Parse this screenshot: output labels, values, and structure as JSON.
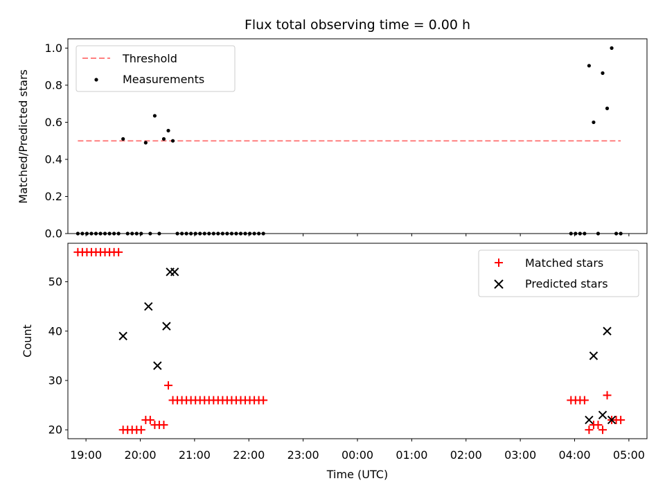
{
  "chart_data": [
    {
      "type": "scatter",
      "title": "Flux total observing time = 0.00 h",
      "xlabel": "",
      "ylabel": "Matched/Predicted stars",
      "xlim": [
        "18:40",
        "05:20"
      ],
      "ylim": [
        0,
        1.05
      ],
      "yticks": [
        0.0,
        0.2,
        0.4,
        0.6,
        0.8,
        1.0
      ],
      "ytick_labels": [
        "0.0",
        "0.2",
        "0.4",
        "0.6",
        "0.8",
        "1.0"
      ],
      "legend": "upper-left",
      "threshold": {
        "name": "Threshold",
        "value": 0.5,
        "from": "18:51",
        "to": "04:51",
        "color": "#ff7f7f",
        "style": "dashed"
      },
      "series": [
        {
          "name": "Measurements",
          "color": "#000000",
          "marker": "dot",
          "points": [
            [
              "18:51",
              0
            ],
            [
              "18:56",
              0
            ],
            [
              "19:01",
              0
            ],
            [
              "19:06",
              0
            ],
            [
              "19:11",
              0
            ],
            [
              "19:16",
              0
            ],
            [
              "19:21",
              0
            ],
            [
              "19:26",
              0
            ],
            [
              "19:31",
              0
            ],
            [
              "19:36",
              0
            ],
            [
              "19:41",
              0.51
            ],
            [
              "19:46",
              0
            ],
            [
              "19:51",
              0
            ],
            [
              "19:56",
              0
            ],
            [
              "20:01",
              0
            ],
            [
              "20:06",
              0.49
            ],
            [
              "20:11",
              0
            ],
            [
              "20:16",
              0.635
            ],
            [
              "20:21",
              0
            ],
            [
              "20:26",
              0.51
            ],
            [
              "20:31",
              0.555
            ],
            [
              "20:36",
              0.5
            ],
            [
              "20:41",
              0
            ],
            [
              "20:46",
              0
            ],
            [
              "20:51",
              0
            ],
            [
              "20:56",
              0
            ],
            [
              "21:01",
              0
            ],
            [
              "21:06",
              0
            ],
            [
              "21:11",
              0
            ],
            [
              "21:16",
              0
            ],
            [
              "21:21",
              0
            ],
            [
              "21:26",
              0
            ],
            [
              "21:31",
              0
            ],
            [
              "21:36",
              0
            ],
            [
              "21:41",
              0
            ],
            [
              "21:46",
              0
            ],
            [
              "21:51",
              0
            ],
            [
              "21:56",
              0
            ],
            [
              "22:01",
              0
            ],
            [
              "22:06",
              0
            ],
            [
              "22:11",
              0
            ],
            [
              "22:16",
              0
            ],
            [
              "03:56",
              0
            ],
            [
              "04:01",
              0
            ],
            [
              "04:06",
              0
            ],
            [
              "04:11",
              0
            ],
            [
              "04:16",
              0.905
            ],
            [
              "04:21",
              0.6
            ],
            [
              "04:26",
              0
            ],
            [
              "04:31",
              0.865
            ],
            [
              "04:36",
              0.675
            ],
            [
              "04:41",
              1.0
            ],
            [
              "04:46",
              0
            ],
            [
              "04:51",
              0
            ]
          ]
        }
      ]
    },
    {
      "type": "scatter",
      "title": "",
      "xlabel": "Time (UTC)",
      "ylabel": "Count",
      "xlim": [
        "18:40",
        "05:20"
      ],
      "ylim": [
        18.2,
        57.8
      ],
      "yticks": [
        20,
        30,
        40,
        50
      ],
      "ytick_labels": [
        "20",
        "30",
        "40",
        "50"
      ],
      "xticks": [
        "19:00",
        "20:00",
        "21:00",
        "22:00",
        "23:00",
        "00:00",
        "01:00",
        "02:00",
        "03:00",
        "04:00",
        "05:00"
      ],
      "legend": "upper-right",
      "series": [
        {
          "name": "Matched stars",
          "color": "#ff0000",
          "marker": "plus",
          "points": [
            [
              "18:51",
              56
            ],
            [
              "18:56",
              56
            ],
            [
              "19:01",
              56
            ],
            [
              "19:06",
              56
            ],
            [
              "19:11",
              56
            ],
            [
              "19:16",
              56
            ],
            [
              "19:21",
              56
            ],
            [
              "19:26",
              56
            ],
            [
              "19:31",
              56
            ],
            [
              "19:36",
              56
            ],
            [
              "19:41",
              20
            ],
            [
              "19:46",
              20
            ],
            [
              "19:51",
              20
            ],
            [
              "19:56",
              20
            ],
            [
              "20:01",
              20
            ],
            [
              "20:06",
              22
            ],
            [
              "20:11",
              22
            ],
            [
              "20:16",
              21
            ],
            [
              "20:21",
              21
            ],
            [
              "20:26",
              21
            ],
            [
              "20:31",
              29
            ],
            [
              "20:36",
              26
            ],
            [
              "20:41",
              26
            ],
            [
              "20:46",
              26
            ],
            [
              "20:51",
              26
            ],
            [
              "20:56",
              26
            ],
            [
              "21:01",
              26
            ],
            [
              "21:06",
              26
            ],
            [
              "21:11",
              26
            ],
            [
              "21:16",
              26
            ],
            [
              "21:21",
              26
            ],
            [
              "21:26",
              26
            ],
            [
              "21:31",
              26
            ],
            [
              "21:36",
              26
            ],
            [
              "21:41",
              26
            ],
            [
              "21:46",
              26
            ],
            [
              "21:51",
              26
            ],
            [
              "21:56",
              26
            ],
            [
              "22:01",
              26
            ],
            [
              "22:06",
              26
            ],
            [
              "22:11",
              26
            ],
            [
              "22:16",
              26
            ],
            [
              "03:56",
              26
            ],
            [
              "04:01",
              26
            ],
            [
              "04:06",
              26
            ],
            [
              "04:11",
              26
            ],
            [
              "04:16",
              20
            ],
            [
              "04:21",
              21
            ],
            [
              "04:26",
              21
            ],
            [
              "04:31",
              20
            ],
            [
              "04:36",
              27
            ],
            [
              "04:41",
              22
            ],
            [
              "04:46",
              22
            ],
            [
              "04:51",
              22
            ]
          ]
        },
        {
          "name": "Predicted stars",
          "color": "#000000",
          "marker": "x",
          "points": [
            [
              "19:41",
              39
            ],
            [
              "20:09",
              45
            ],
            [
              "20:19",
              33
            ],
            [
              "20:29",
              41
            ],
            [
              "20:33",
              52
            ],
            [
              "20:38",
              52
            ],
            [
              "04:16",
              22
            ],
            [
              "04:21",
              35
            ],
            [
              "04:31",
              23
            ],
            [
              "04:36",
              40
            ],
            [
              "04:41",
              22
            ]
          ]
        }
      ]
    }
  ]
}
